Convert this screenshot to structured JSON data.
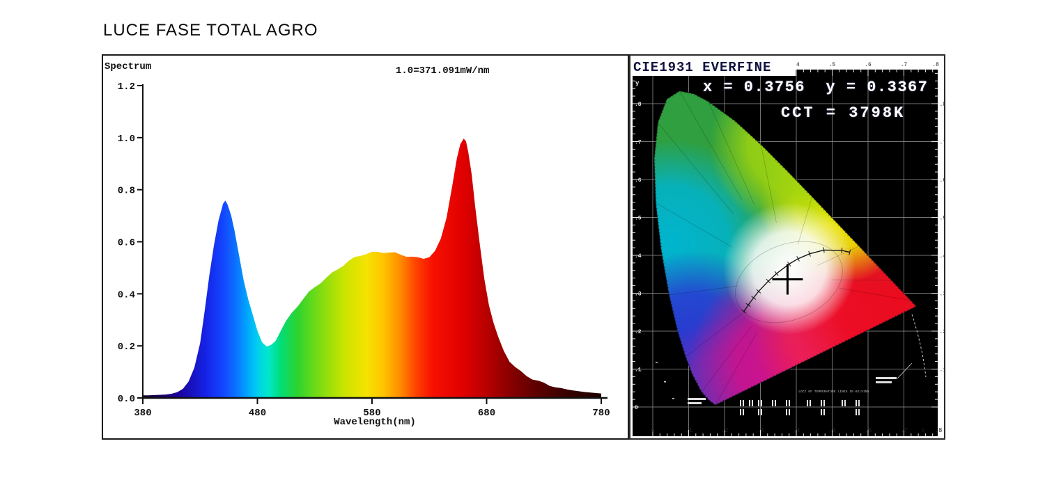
{
  "page": {
    "title": "LUCE FASE TOTAL AGRO"
  },
  "colors": {
    "panel_border": "#1c1c1c",
    "cie_background": "#000000",
    "grid_line": "#8f8f8f",
    "annotation_text": "#ffffff",
    "marker": "#000000",
    "axis_line": "#111111"
  },
  "spectrum_panel": {
    "corner_label": "Spectrum",
    "scale_annotation": "1.0=371.091mW/nm",
    "x_axis_label": "Wavelength(nm)"
  },
  "cie_panel": {
    "header": "CIE1931 EVERFINE",
    "xy_annotation": "x = 0.3756  y = 0.3367",
    "cct_annotation": "CCT = 3798K",
    "temperature_loci_label": "LOCI OF TEMPERATURE LINES IN KELVINS",
    "x_axis_letter": "x",
    "y_axis_letter": "y"
  },
  "chart_data": [
    {
      "type": "area",
      "title": "Spectrum",
      "xlabel": "Wavelength(nm)",
      "ylabel": "",
      "annotation": "1.0=371.091mW/nm",
      "xlim": [
        380,
        780
      ],
      "ylim": [
        0,
        1.2
      ],
      "xticks": [
        {
          "value": 380,
          "label": "380"
        },
        {
          "value": 480,
          "label": "480"
        },
        {
          "value": 580,
          "label": "580"
        },
        {
          "value": 680,
          "label": "680"
        },
        {
          "value": 780,
          "label": "780"
        }
      ],
      "yticks": [
        {
          "value": 1.2,
          "label": "1.2"
        },
        {
          "value": 1.0,
          "label": "1.0"
        },
        {
          "value": 0.8,
          "label": "0.8"
        },
        {
          "value": 0.6,
          "label": "0.6"
        },
        {
          "value": 0.4,
          "label": "0.4"
        },
        {
          "value": 0.2,
          "label": "0.2"
        },
        {
          "value": 0.0,
          "label": "0.0"
        }
      ],
      "grid": false,
      "series_name": "relative spectral power (1.0 = 371.091 mW/nm)",
      "points": [
        [
          380,
          0.01
        ],
        [
          385,
          0.01
        ],
        [
          390,
          0.011
        ],
        [
          395,
          0.012
        ],
        [
          400,
          0.013
        ],
        [
          405,
          0.016
        ],
        [
          410,
          0.022
        ],
        [
          415,
          0.035
        ],
        [
          420,
          0.06
        ],
        [
          425,
          0.115
        ],
        [
          430,
          0.215
        ],
        [
          434,
          0.335
        ],
        [
          438,
          0.465
        ],
        [
          442,
          0.585
        ],
        [
          446,
          0.685
        ],
        [
          450,
          0.745
        ],
        [
          452,
          0.755
        ],
        [
          454,
          0.745
        ],
        [
          457,
          0.705
        ],
        [
          460,
          0.64
        ],
        [
          464,
          0.545
        ],
        [
          468,
          0.455
        ],
        [
          472,
          0.38
        ],
        [
          476,
          0.315
        ],
        [
          480,
          0.258
        ],
        [
          484,
          0.218
        ],
        [
          488,
          0.197
        ],
        [
          492,
          0.2
        ],
        [
          496,
          0.222
        ],
        [
          500,
          0.258
        ],
        [
          505,
          0.294
        ],
        [
          510,
          0.325
        ],
        [
          515,
          0.354
        ],
        [
          520,
          0.382
        ],
        [
          525,
          0.405
        ],
        [
          530,
          0.425
        ],
        [
          535,
          0.444
        ],
        [
          540,
          0.461
        ],
        [
          545,
          0.478
        ],
        [
          550,
          0.495
        ],
        [
          555,
          0.511
        ],
        [
          560,
          0.526
        ],
        [
          565,
          0.539
        ],
        [
          570,
          0.549
        ],
        [
          575,
          0.555
        ],
        [
          580,
          0.558
        ],
        [
          585,
          0.56
        ],
        [
          590,
          0.561
        ],
        [
          595,
          0.559
        ],
        [
          600,
          0.556
        ],
        [
          605,
          0.551
        ],
        [
          610,
          0.546
        ],
        [
          615,
          0.541
        ],
        [
          620,
          0.537
        ],
        [
          625,
          0.537
        ],
        [
          630,
          0.543
        ],
        [
          635,
          0.562
        ],
        [
          640,
          0.61
        ],
        [
          645,
          0.695
        ],
        [
          650,
          0.815
        ],
        [
          654,
          0.915
        ],
        [
          657,
          0.975
        ],
        [
          660,
          1.0
        ],
        [
          662,
          0.985
        ],
        [
          664,
          0.94
        ],
        [
          667,
          0.86
        ],
        [
          670,
          0.74
        ],
        [
          674,
          0.59
        ],
        [
          678,
          0.455
        ],
        [
          682,
          0.36
        ],
        [
          686,
          0.29
        ],
        [
          690,
          0.232
        ],
        [
          695,
          0.18
        ],
        [
          700,
          0.143
        ],
        [
          705,
          0.118
        ],
        [
          710,
          0.099
        ],
        [
          715,
          0.085
        ],
        [
          720,
          0.074
        ],
        [
          725,
          0.064
        ],
        [
          730,
          0.056
        ],
        [
          735,
          0.049
        ],
        [
          740,
          0.043
        ],
        [
          745,
          0.038
        ],
        [
          750,
          0.033
        ],
        [
          755,
          0.029
        ],
        [
          760,
          0.026
        ],
        [
          765,
          0.023
        ],
        [
          770,
          0.021
        ],
        [
          775,
          0.019
        ],
        [
          780,
          0.017
        ]
      ],
      "color_stops": [
        [
          380,
          "#120024"
        ],
        [
          410,
          "#1b0096"
        ],
        [
          435,
          "#1523e6"
        ],
        [
          450,
          "#1446ff"
        ],
        [
          460,
          "#0d6cff"
        ],
        [
          470,
          "#00a0ff"
        ],
        [
          480,
          "#00cfee"
        ],
        [
          490,
          "#00e8c8"
        ],
        [
          500,
          "#00dd7a"
        ],
        [
          515,
          "#2ed32e"
        ],
        [
          535,
          "#7fdc12"
        ],
        [
          555,
          "#c8e400"
        ],
        [
          575,
          "#f5e300"
        ],
        [
          590,
          "#ffc400"
        ],
        [
          605,
          "#ff8a00"
        ],
        [
          618,
          "#ff4400"
        ],
        [
          633,
          "#f71000"
        ],
        [
          660,
          "#e00000"
        ],
        [
          680,
          "#b80000"
        ],
        [
          700,
          "#8a0000"
        ],
        [
          725,
          "#5a0000"
        ],
        [
          750,
          "#380000"
        ],
        [
          780,
          "#1c0000"
        ]
      ]
    },
    {
      "type": "scatter",
      "title": "CIE1931 EVERFINE",
      "xlabel": "x",
      "ylabel": "y",
      "xlim": [
        0,
        0.8
      ],
      "ylim": [
        0,
        0.89
      ],
      "grid": true,
      "legend_position": "none",
      "annotations": [
        "x = 0.3756  y = 0.3367",
        "CCT = 3798K"
      ],
      "measurement_point": {
        "x": 0.3756,
        "y": 0.3367,
        "cct": "3798K"
      },
      "xticks": [
        {
          "value": 0.0,
          "label": "0"
        },
        {
          "value": 0.1,
          "label": ".1"
        },
        {
          "value": 0.2,
          "label": ".2"
        },
        {
          "value": 0.3,
          "label": ".3"
        },
        {
          "value": 0.4,
          "label": ".4"
        },
        {
          "value": 0.5,
          "label": ".5"
        },
        {
          "value": 0.6,
          "label": ".6"
        },
        {
          "value": 0.7,
          "label": ".7"
        },
        {
          "value": 0.8,
          "label": ".8"
        }
      ],
      "yticks": [
        {
          "value": 0.0,
          "label": "0"
        },
        {
          "value": 0.1,
          "label": ".1"
        },
        {
          "value": 0.2,
          "label": ".2"
        },
        {
          "value": 0.3,
          "label": ".3"
        },
        {
          "value": 0.4,
          "label": ".4"
        },
        {
          "value": 0.5,
          "label": ".5"
        },
        {
          "value": 0.6,
          "label": ".6"
        },
        {
          "value": 0.7,
          "label": ".7"
        },
        {
          "value": 0.8,
          "label": ".8"
        }
      ],
      "spectral_locus": [
        [
          0.1741,
          0.005
        ],
        [
          0.1566,
          0.0177
        ],
        [
          0.1355,
          0.0399
        ],
        [
          0.1096,
          0.0868
        ],
        [
          0.0913,
          0.1327
        ],
        [
          0.0687,
          0.2007
        ],
        [
          0.0454,
          0.295
        ],
        [
          0.0235,
          0.4127
        ],
        [
          0.0082,
          0.5384
        ],
        [
          0.0039,
          0.6548
        ],
        [
          0.0139,
          0.7502
        ],
        [
          0.0389,
          0.812
        ],
        [
          0.0743,
          0.8338
        ],
        [
          0.1142,
          0.8262
        ],
        [
          0.1547,
          0.8059
        ],
        [
          0.2296,
          0.7543
        ],
        [
          0.3016,
          0.6923
        ],
        [
          0.3731,
          0.6245
        ],
        [
          0.4441,
          0.5547
        ],
        [
          0.5125,
          0.4866
        ],
        [
          0.5752,
          0.4242
        ],
        [
          0.627,
          0.3725
        ],
        [
          0.6658,
          0.334
        ],
        [
          0.6915,
          0.3083
        ],
        [
          0.719,
          0.2809
        ],
        [
          0.7347,
          0.2653
        ]
      ],
      "planckian_locus": [
        [
          0.549,
          0.408
        ],
        [
          0.527,
          0.413
        ],
        [
          0.477,
          0.414
        ],
        [
          0.437,
          0.404
        ],
        [
          0.405,
          0.391
        ],
        [
          0.38,
          0.377
        ],
        [
          0.345,
          0.352
        ],
        [
          0.322,
          0.332
        ],
        [
          0.295,
          0.305
        ],
        [
          0.281,
          0.288
        ],
        [
          0.266,
          0.269
        ],
        [
          0.254,
          0.252
        ]
      ]
    }
  ]
}
